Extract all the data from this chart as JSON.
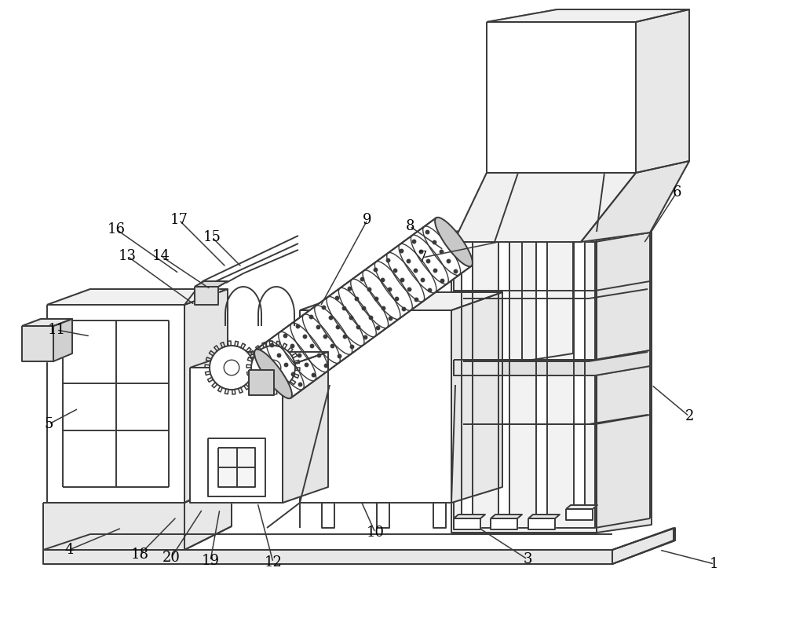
{
  "bg_color": "#ffffff",
  "line_color": "#3a3a3a",
  "line_width": 1.4,
  "label_fontsize": 13,
  "label_data": [
    [
      "1",
      910,
      718,
      840,
      700
    ],
    [
      "2",
      878,
      530,
      830,
      490
    ],
    [
      "3",
      672,
      712,
      610,
      672
    ],
    [
      "4",
      88,
      700,
      155,
      672
    ],
    [
      "5",
      62,
      540,
      100,
      520
    ],
    [
      "6",
      862,
      245,
      820,
      310
    ],
    [
      "7",
      538,
      328,
      635,
      308
    ],
    [
      "8",
      522,
      288,
      565,
      318
    ],
    [
      "9",
      468,
      280,
      408,
      390
    ],
    [
      "10",
      478,
      678,
      460,
      638
    ],
    [
      "11",
      72,
      420,
      115,
      428
    ],
    [
      "12",
      348,
      716,
      328,
      640
    ],
    [
      "13",
      162,
      326,
      248,
      388
    ],
    [
      "14",
      205,
      326,
      268,
      368
    ],
    [
      "15",
      270,
      302,
      308,
      340
    ],
    [
      "16",
      148,
      292,
      228,
      348
    ],
    [
      "17",
      228,
      280,
      288,
      340
    ],
    [
      "18",
      178,
      706,
      225,
      658
    ],
    [
      "19",
      268,
      714,
      280,
      648
    ],
    [
      "20",
      218,
      710,
      258,
      648
    ]
  ]
}
